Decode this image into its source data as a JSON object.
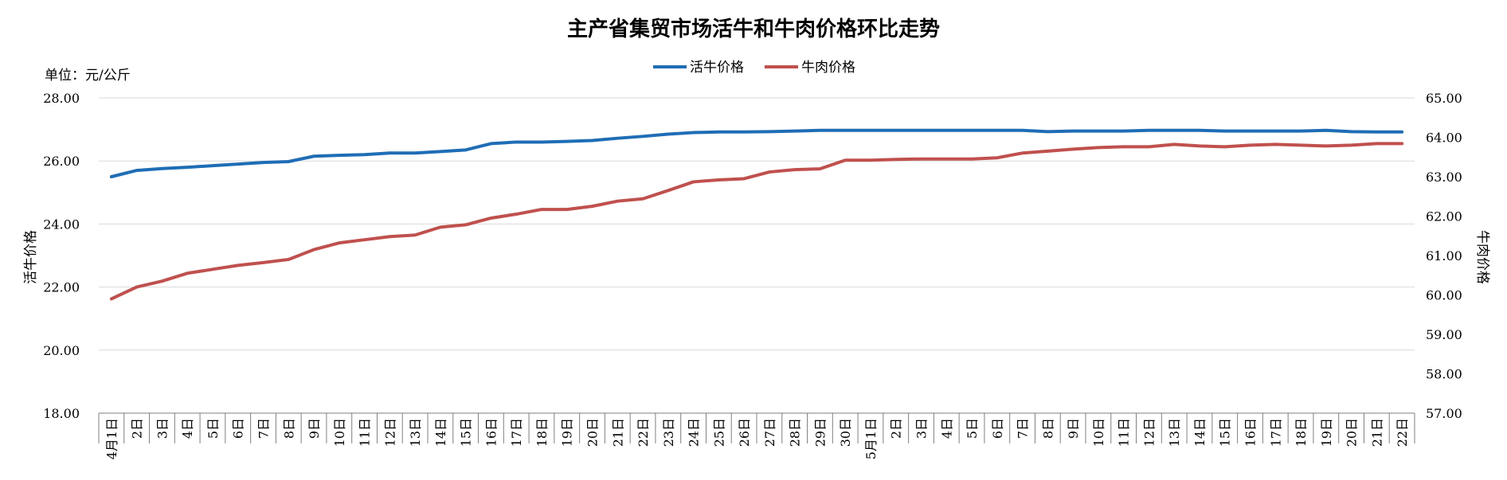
{
  "chart_data": {
    "type": "line",
    "title": "主产省集贸市场活牛和牛肉价格环比走势",
    "unit_label": "单位：元/公斤",
    "ylabel_left": "活牛价格",
    "ylabel_right": "牛肉价格",
    "ylim_left": [
      18,
      28
    ],
    "ylim_right": [
      57,
      65
    ],
    "yticks_left": [
      "28.00",
      "26.00",
      "24.00",
      "22.00",
      "20.00",
      "18.00"
    ],
    "yticks_right": [
      "65.00",
      "64.00",
      "63.00",
      "62.00",
      "61.00",
      "60.00",
      "59.00",
      "58.00",
      "57.00"
    ],
    "legend_position": "top-center",
    "grid": true,
    "categories": [
      "4月1日",
      "2日",
      "3日",
      "4日",
      "5日",
      "6日",
      "7日",
      "8日",
      "9日",
      "10日",
      "11日",
      "12日",
      "13日",
      "14日",
      "15日",
      "16日",
      "17日",
      "18日",
      "19日",
      "20日",
      "21日",
      "22日",
      "23日",
      "24日",
      "25日",
      "26日",
      "27日",
      "28日",
      "29日",
      "30日",
      "5月1日",
      "2日",
      "3日",
      "4日",
      "5日",
      "6日",
      "7日",
      "8日",
      "9日",
      "10日",
      "11日",
      "12日",
      "13日",
      "14日",
      "15日",
      "16日",
      "17日",
      "18日",
      "19日",
      "20日",
      "21日",
      "22日"
    ],
    "series": [
      {
        "name": "活牛价格",
        "axis": "left",
        "color": "#1f6db5",
        "values": [
          25.5,
          25.7,
          25.76,
          25.8,
          25.85,
          25.9,
          25.95,
          25.98,
          26.15,
          26.18,
          26.2,
          26.25,
          26.25,
          26.3,
          26.35,
          26.55,
          26.6,
          26.6,
          26.62,
          26.65,
          26.72,
          26.78,
          26.85,
          26.9,
          26.92,
          26.92,
          26.93,
          26.95,
          26.97,
          26.97,
          26.97,
          26.97,
          26.97,
          26.97,
          26.97,
          26.97,
          26.97,
          26.93,
          26.95,
          26.95,
          26.95,
          26.97,
          26.97,
          26.97,
          26.95,
          26.95,
          26.95,
          26.95,
          26.97,
          26.93,
          26.92,
          26.92
        ]
      },
      {
        "name": "牛肉价格",
        "axis": "right",
        "color": "#c0504d",
        "values": [
          59.9,
          60.2,
          60.35,
          60.55,
          60.65,
          60.75,
          60.82,
          60.9,
          61.15,
          61.32,
          61.4,
          61.48,
          61.52,
          61.72,
          61.78,
          61.95,
          62.05,
          62.17,
          62.17,
          62.25,
          62.38,
          62.44,
          62.65,
          62.87,
          62.92,
          62.95,
          63.12,
          63.18,
          63.2,
          63.42,
          63.42,
          63.44,
          63.45,
          63.45,
          63.45,
          63.48,
          63.6,
          63.65,
          63.7,
          63.74,
          63.76,
          63.76,
          63.82,
          63.78,
          63.76,
          63.8,
          63.82,
          63.8,
          63.78,
          63.8,
          63.84,
          63.84
        ]
      }
    ]
  }
}
